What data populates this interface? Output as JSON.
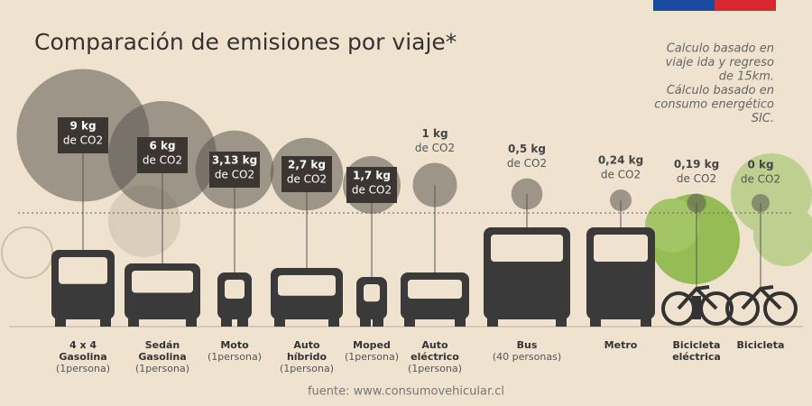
{
  "chart_data": {
    "type": "bubble",
    "title": "Comparación de emisiones por viaje*",
    "note": [
      "Calculo basado en",
      "viaje ida y regreso",
      "de 15km.",
      "Cálculo basado en",
      "consumo energético",
      "SIC."
    ],
    "source": "fuente: www.consumovehicular.cl",
    "unit_label": "de CO2",
    "categories": [
      [
        "4 x 4",
        "Gasolina"
      ],
      [
        "Sedán",
        "Gasolina"
      ],
      [
        "Moto"
      ],
      [
        "Auto",
        "híbrido"
      ],
      [
        "Moped"
      ],
      [
        "Auto",
        "eléctrico"
      ],
      [
        "Bus"
      ],
      [
        "Metro"
      ],
      [
        "Bicicleta",
        "eléctrica"
      ],
      [
        "Bicicleta"
      ]
    ],
    "occupancy": [
      "(1persona)",
      "(1persona)",
      "(1persona)",
      "(1persona)",
      "(1persona)",
      "(1persona)",
      "(40 personas)",
      null,
      null,
      null
    ],
    "values": [
      9,
      6,
      3.13,
      2.7,
      1.7,
      1,
      0.5,
      0.24,
      0.19,
      0
    ],
    "value_labels": [
      "9 kg",
      "6 kg",
      "3,13 kg",
      "2,7 kg",
      "1,7 kg",
      "1 kg",
      "0,5 kg",
      "0,24 kg",
      "0,19 kg",
      "0 kg"
    ],
    "color": "#5b5550"
  }
}
